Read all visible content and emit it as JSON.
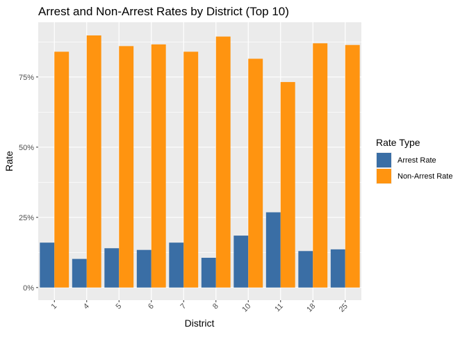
{
  "chart_data": {
    "type": "bar",
    "title": "Arrest and Non-Arrest Rates by District (Top 10)",
    "xlabel": "District",
    "ylabel": "Rate",
    "categories": [
      "1",
      "4",
      "5",
      "6",
      "7",
      "8",
      "10",
      "11",
      "18",
      "25"
    ],
    "series": [
      {
        "name": "Arrest Rate",
        "color": "#3A6EA5",
        "values": [
          0.16,
          0.102,
          0.14,
          0.134,
          0.16,
          0.106,
          0.185,
          0.268,
          0.13,
          0.136
        ]
      },
      {
        "name": "Non-Arrest Rate",
        "color": "#FF9410",
        "values": [
          0.84,
          0.898,
          0.86,
          0.866,
          0.84,
          0.894,
          0.815,
          0.732,
          0.87,
          0.864
        ]
      }
    ],
    "ylim": [
      -0.045,
      0.945
    ],
    "yticks": [
      0,
      0.25,
      0.5,
      0.75
    ],
    "ytick_labels": [
      "0%",
      "25%",
      "50%",
      "75%"
    ],
    "grid": true,
    "legend": {
      "title": "Rate Type",
      "position": "right"
    },
    "panel_background": "#EBEBEB"
  }
}
